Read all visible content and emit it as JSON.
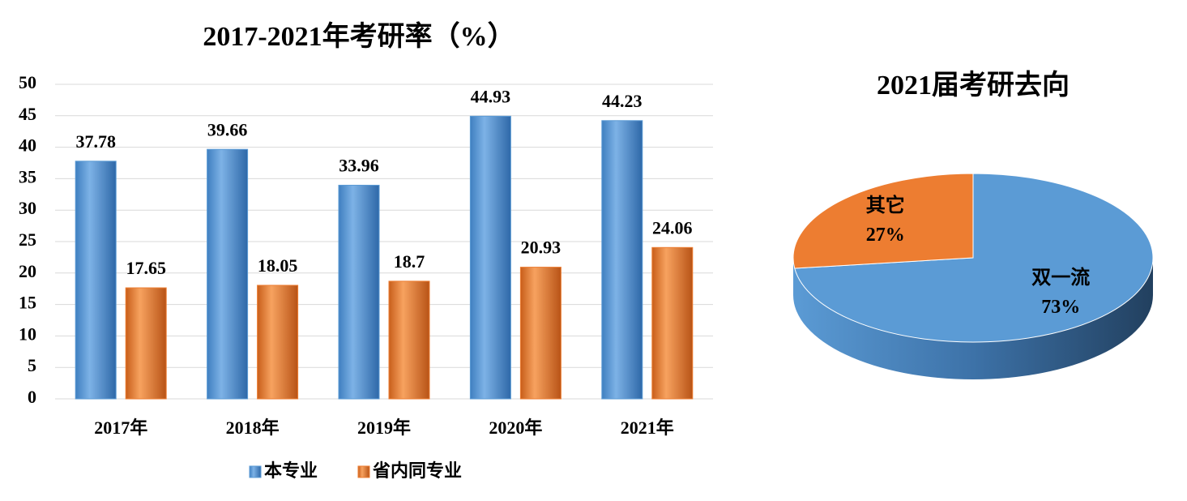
{
  "chart_data": [
    {
      "type": "bar",
      "title": "2017-2021年考研率（%）",
      "categories": [
        "2017年",
        "2018年",
        "2019年",
        "2020年",
        "2021年"
      ],
      "series": [
        {
          "name": "本专业",
          "color": "#5b9bd5",
          "values": [
            37.78,
            39.66,
            33.96,
            44.93,
            44.23
          ]
        },
        {
          "name": "省内同专业",
          "color": "#ed7d31",
          "values": [
            17.65,
            18.05,
            18.7,
            20.93,
            24.06
          ]
        }
      ],
      "ylim": [
        0,
        50
      ],
      "yticks": [
        0,
        5,
        10,
        15,
        20,
        25,
        30,
        35,
        40,
        45,
        50
      ],
      "grid": true,
      "legend": "bottom"
    },
    {
      "type": "pie",
      "title": "2021届考研去向",
      "categories": [
        "双一流",
        "其它"
      ],
      "values": [
        73,
        27
      ],
      "value_labels": [
        "73%",
        "27%"
      ],
      "colors": [
        "#5b9bd5",
        "#ed7d31"
      ]
    }
  ]
}
